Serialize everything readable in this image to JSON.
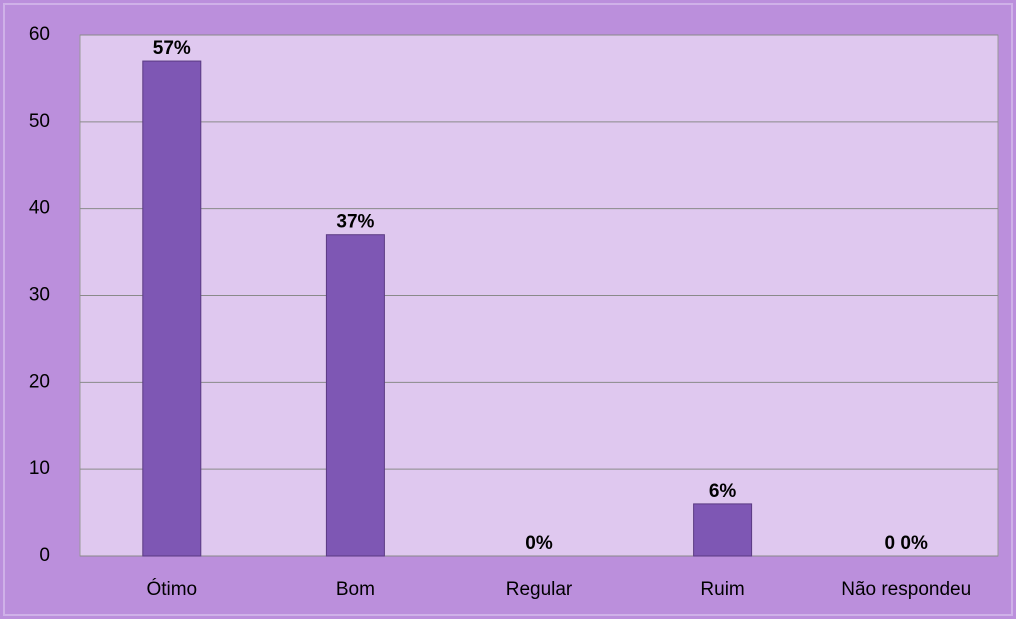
{
  "chart_data": {
    "type": "bar",
    "categories": [
      "Ótimo",
      "Bom",
      "Regular",
      "Ruim",
      "Não respondeu"
    ],
    "values": [
      57,
      37,
      0,
      6,
      0
    ],
    "value_labels": [
      "57%",
      "37%",
      "0%",
      "6%",
      "0 0%"
    ],
    "color": "#7e57b4",
    "ylim": [
      0,
      60
    ],
    "yticks": [
      0,
      10,
      20,
      30,
      40,
      50,
      60
    ],
    "grid": true
  }
}
